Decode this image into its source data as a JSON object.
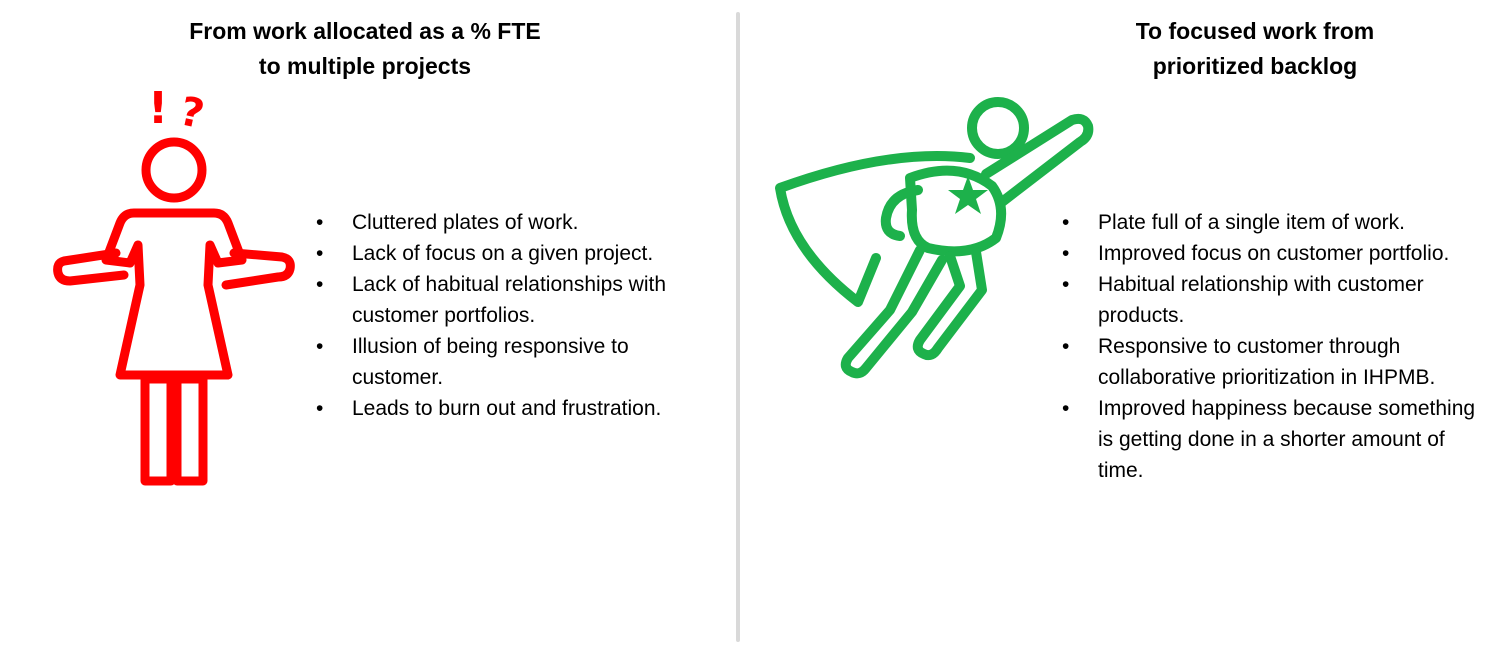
{
  "left": {
    "heading": [
      "From work allocated as a % FTE",
      "to multiple projects"
    ],
    "icon": "confused-woman-icon",
    "icon_color": "#ff0000",
    "exclamation": "!",
    "question": "?",
    "bullets": [
      "Cluttered plates of work.",
      "Lack of focus on a given project.",
      "Lack of habitual relationships with customer portfolios.",
      "Illusion of being responsive to customer.",
      "Leads to burn out and frustration."
    ]
  },
  "right": {
    "heading": [
      "To focused work from",
      "prioritized backlog"
    ],
    "icon": "superhero-icon",
    "icon_color": "#1db14b",
    "bullets": [
      "Plate full of a single item of work.",
      "Improved focus on customer portfolio.",
      "Habitual relationship with customer products.",
      "Responsive to customer through collaborative prioritization in IHPMB.",
      "Improved happiness because something is getting done in a shorter amount of time."
    ]
  }
}
